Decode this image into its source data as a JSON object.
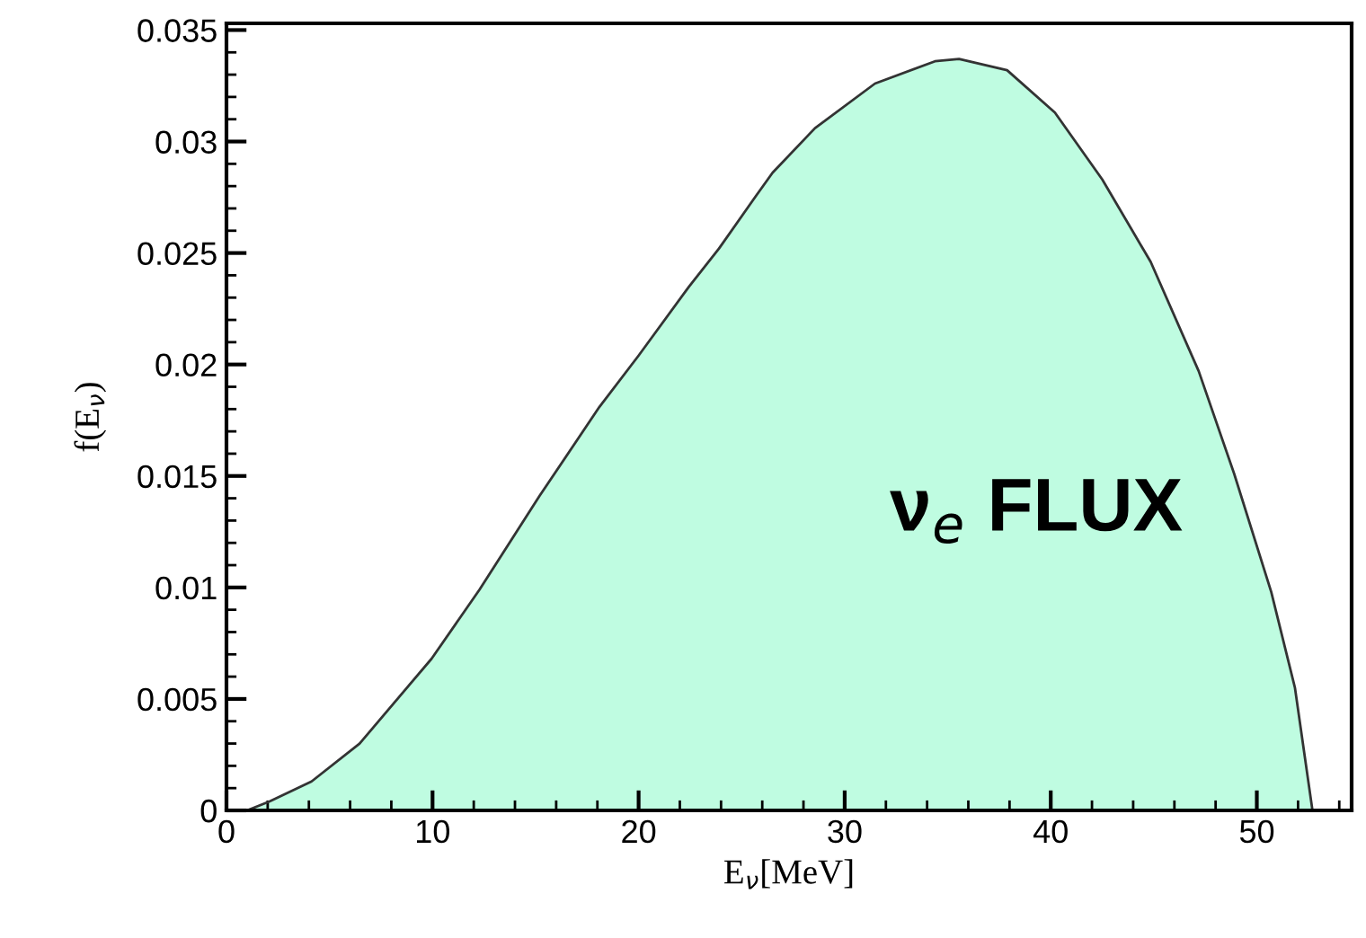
{
  "chart_data": {
    "type": "area",
    "xlabel": "E$_{ν}$[MeV]",
    "ylabel": "f(E$_{ν}$)",
    "annotations": [
      "ν$_{e}$ FLUX"
    ],
    "series": [
      {
        "color": "#bffce1",
        "x": [
          1,
          2.09,
          4.13,
          6.46,
          9.95,
          12.28,
          15.19,
          18.1,
          20.0,
          22.45,
          23.9,
          25.65,
          26.5,
          28.56,
          31.47,
          34.38,
          35.55,
          37.88,
          40.2,
          42.5,
          44.85,
          47.18,
          48.9,
          50.7,
          51.85,
          52.7
        ],
        "values": [
          0,
          0.0004,
          0.0013,
          0.003,
          0.0068,
          0.0099,
          0.0141,
          0.0181,
          0.0204,
          0.0235,
          0.0252,
          0.0275,
          0.0286,
          0.0306,
          0.0326,
          0.0336,
          0.0337,
          0.0332,
          0.0313,
          0.0283,
          0.0246,
          0.0197,
          0.0151,
          0.0098,
          0.0055,
          0
        ]
      }
    ],
    "xlim": [
      0,
      54.6
    ],
    "ylim": [
      0,
      0.0353
    ],
    "xticks": [
      0,
      10,
      20,
      30,
      40,
      50
    ],
    "yticks": [
      0,
      0.005,
      0.01,
      0.015,
      0.02,
      0.025,
      0.03,
      0.035
    ],
    "grid": false,
    "legend": false
  }
}
